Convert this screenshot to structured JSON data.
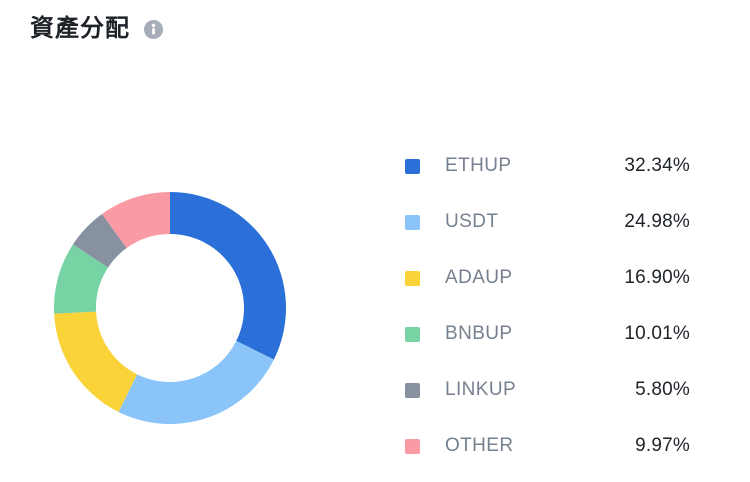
{
  "header": {
    "title": "資產分配"
  },
  "chart_data": {
    "type": "pie",
    "donut": true,
    "title": "資產分配",
    "legend_position": "right",
    "start_angle_deg": 0,
    "direction": "clockwise",
    "inner_radius_ratio": 0.638,
    "series": [
      {
        "label": "ETHUP",
        "value": 32.34,
        "percent_label": "32.34%",
        "color": "#2A70D8"
      },
      {
        "label": "USDT",
        "value": 24.98,
        "percent_label": "24.98%",
        "color": "#8AC4F8"
      },
      {
        "label": "ADAUP",
        "value": 16.9,
        "percent_label": "16.90%",
        "color": "#F9D338"
      },
      {
        "label": "BNBUP",
        "value": 10.01,
        "percent_label": "10.01%",
        "color": "#77D2A4"
      },
      {
        "label": "LINKUP",
        "value": 5.8,
        "percent_label": "5.80%",
        "color": "#8791A0"
      },
      {
        "label": "OTHER",
        "value": 9.97,
        "percent_label": "9.97%",
        "color": "#F99AA4"
      }
    ]
  }
}
